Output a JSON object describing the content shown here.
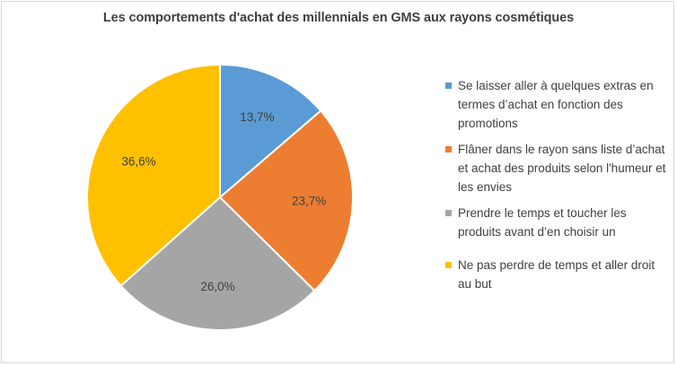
{
  "chart_data": {
    "type": "pie",
    "title": "Les comportements d'achat des millennials en GMS aux rayons cosmétiques",
    "slices": [
      {
        "label": "Se laisser aller à quelques  extras en termes d’achat en fonction des promotions",
        "value": 13.7,
        "display": "13,7%",
        "color": "#5b9bd5"
      },
      {
        "label": "Flâner dans le rayon sans liste d’achat et achat des produits selon l'humeur et les envies",
        "value": 23.7,
        "display": "23,7%",
        "color": "#ed7d31"
      },
      {
        "label": "Prendre  le temps et toucher les produits avant d’en choisir un",
        "value": 26.0,
        "display": "26,0%",
        "color": "#a5a5a5"
      },
      {
        "label": "Ne pas perdre  de temps et aller droit au but",
        "value": 36.6,
        "display": "36,6%",
        "color": "#ffc000"
      }
    ],
    "legend_position": "right"
  }
}
